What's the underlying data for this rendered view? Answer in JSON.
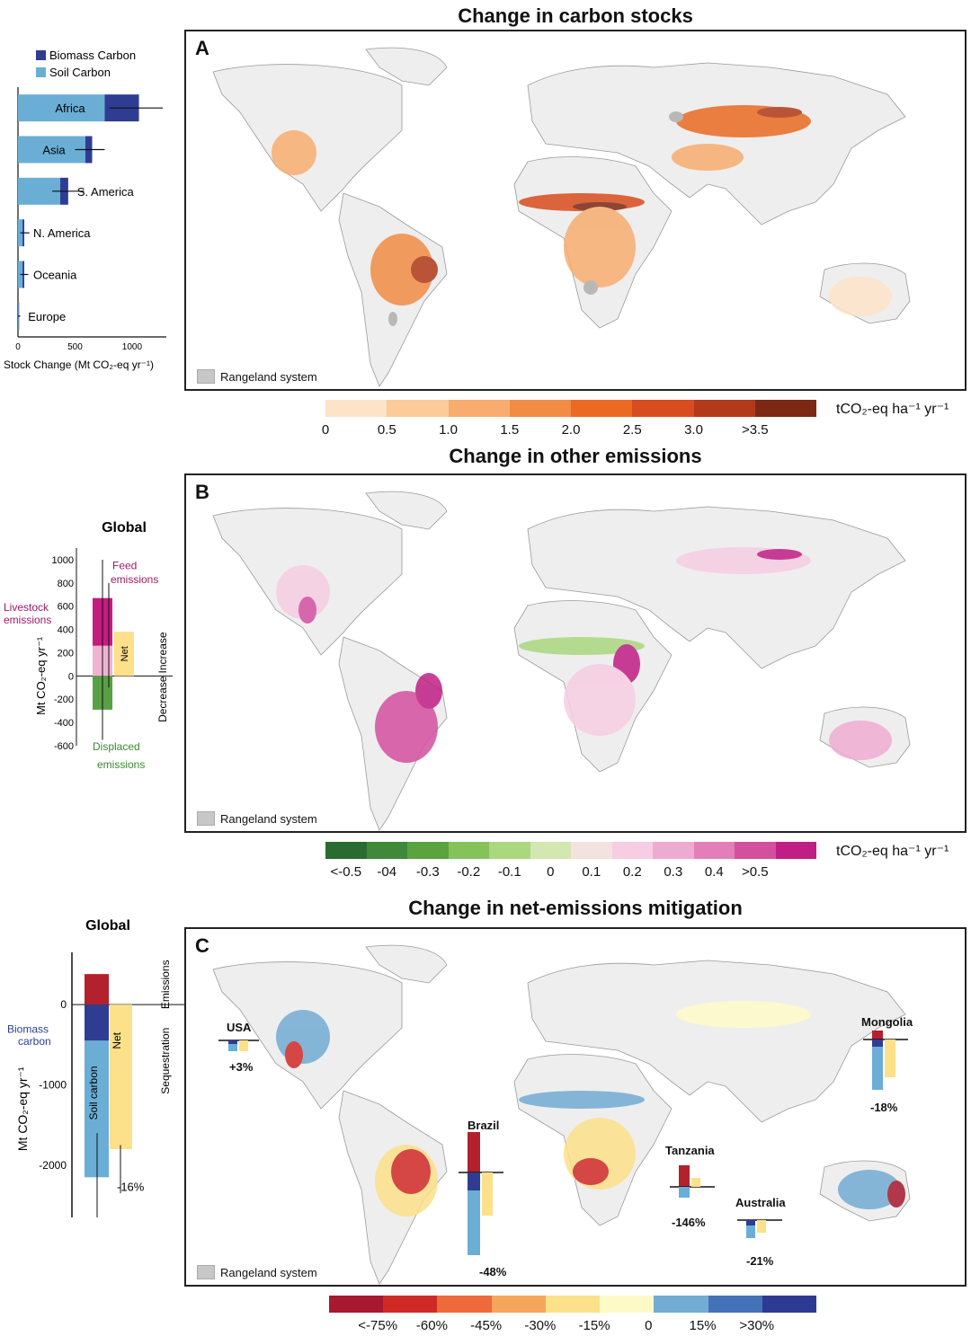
{
  "panelA": {
    "title": "Change in carbon stocks",
    "letter": "A",
    "rangeland": "Rangeland system",
    "unit": "tCO₂-eq ha⁻¹ yr⁻¹",
    "scale_colors": [
      "#fde3c8",
      "#fbcb9a",
      "#f8ad6e",
      "#f28c45",
      "#ea6a22",
      "#d94c1e",
      "#b23a1a",
      "#7d2814"
    ],
    "scale_ticks": [
      "0",
      "0.5",
      "1.0",
      "1.5",
      "2.0",
      "2.5",
      "3.0",
      ">3.5"
    ]
  },
  "stock_chart": {
    "legend": [
      {
        "label": "Biomass Carbon",
        "color": "#2e3d92"
      },
      {
        "label": "Soil Carbon",
        "color": "#6aaed6"
      }
    ],
    "categories": [
      "Africa",
      "Asia",
      "S. America",
      "N. America",
      "Oceania",
      "Europe"
    ],
    "soil": [
      760,
      590,
      370,
      40,
      40,
      5
    ],
    "biomass": [
      300,
      60,
      70,
      15,
      15,
      5
    ],
    "error_low": [
      800,
      500,
      300,
      20,
      20,
      0
    ],
    "error_high": [
      1270,
      760,
      580,
      100,
      90,
      20
    ],
    "xticks": [
      "0",
      "500",
      "1000"
    ],
    "xmax": 1300,
    "xlabel": "Stock Change (Mt CO₂-eq yr⁻¹)"
  },
  "panelB": {
    "title": "Change in other emissions",
    "letter": "B",
    "rangeland": "Rangeland system",
    "unit": "tCO₂-eq ha⁻¹ yr⁻¹",
    "scale_colors": [
      "#2a6b2f",
      "#3e8a3a",
      "#5aa33f",
      "#85c35a",
      "#abd77f",
      "#d2e8b0",
      "#f4e2e1",
      "#f7cde3",
      "#eeabd1",
      "#e27fb8",
      "#d3509f",
      "#c01e85"
    ],
    "scale_ticks": [
      "<-0.5",
      "-04",
      "-0.3",
      "-0.2",
      "-0.1",
      "0",
      "0.1",
      "0.2",
      "0.3",
      "0.4",
      ">0.5"
    ]
  },
  "global_b": {
    "title": "Global",
    "ylabel": "Mt CO₂-eq yr⁻¹",
    "yticks": [
      "1000",
      "800",
      "600",
      "400",
      "200",
      "0",
      "-200",
      "-400",
      "-600"
    ],
    "ymin": -600,
    "ymax": 1100,
    "livestock_emissions": 260,
    "feed_emissions": 410,
    "displaced_emissions": -290,
    "net": 380,
    "labels": {
      "feed": "Feed emissions",
      "livestock": "Livestock emissions",
      "displaced": "Displaced emissions",
      "net": "Net",
      "increase": "Increase",
      "decrease": "Decrease"
    },
    "colors": {
      "feed": "#c41c7f",
      "livestock": "#eeb3d3",
      "displaced": "#57a044",
      "net": "#fde08a"
    }
  },
  "panelC": {
    "title": "Change in net-emissions mitigation",
    "letter": "C",
    "rangeland": "Rangeland system",
    "scale_colors": [
      "#a6192e",
      "#d02a27",
      "#ef6a3a",
      "#f8a55c",
      "#fde08a",
      "#fefac8",
      "#72acd4",
      "#4472b8",
      "#2d3a92"
    ],
    "scale_ticks": [
      "<-75%",
      "-60%",
      "-45%",
      "-30%",
      "-15%",
      "0",
      "15%",
      ">30%"
    ],
    "countries": [
      {
        "name": "USA",
        "pct": "+3%"
      },
      {
        "name": "Mongolia",
        "pct": "-18%"
      },
      {
        "name": "Brazil",
        "pct": "-48%"
      },
      {
        "name": "Tanzania",
        "pct": "-146%"
      },
      {
        "name": "Australia",
        "pct": "-21%"
      }
    ]
  },
  "global_c": {
    "title": "Global",
    "ylabel": "Mt CO₂-eq yr⁻¹",
    "yticks": [
      "0",
      "-1000",
      "-2000"
    ],
    "ymin": -2650,
    "ymax": 650,
    "emissions": 380,
    "biomass": -450,
    "soil": -1700,
    "net": -1800,
    "labels": {
      "biomass": "Biomass carbon",
      "soil": "Soil carbon",
      "net": "Net",
      "pct": "-16%",
      "emissions": "Emissions",
      "sequestration": "Sequestration"
    },
    "colors": {
      "emissions": "#b3222c",
      "biomass": "#2e3d92",
      "soil": "#6aaed6",
      "net": "#fde08a"
    }
  }
}
